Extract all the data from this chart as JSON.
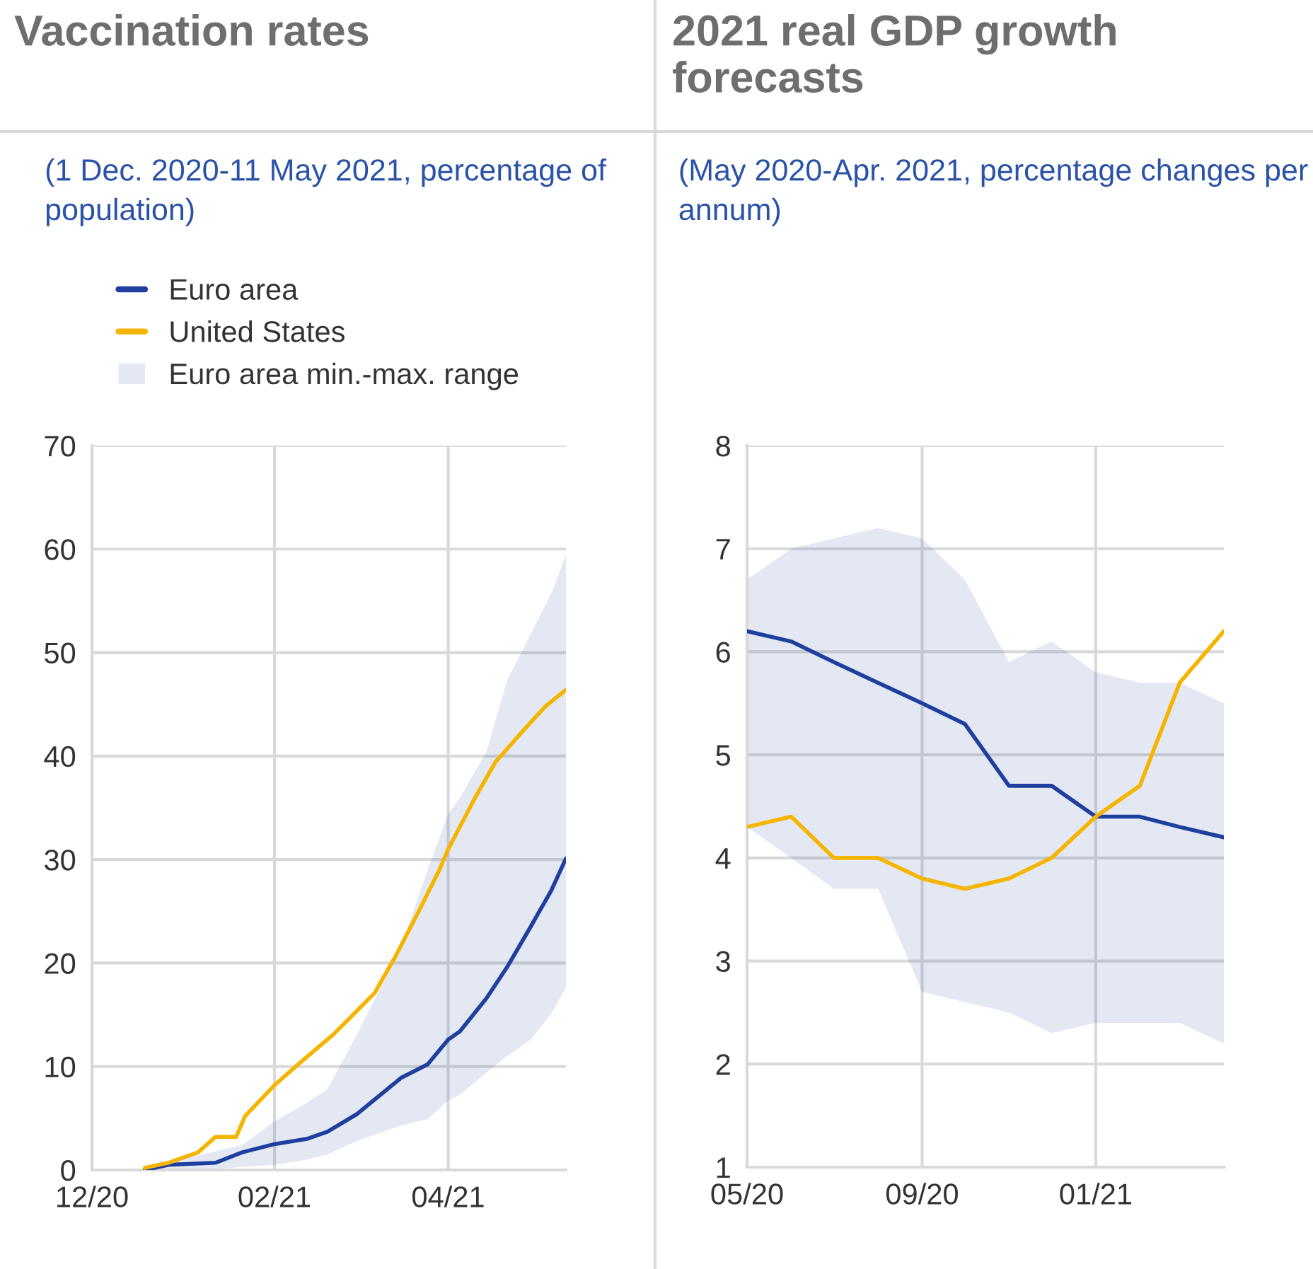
{
  "chart_data": [
    {
      "type": "line",
      "title": "Vaccination rates",
      "subtitle": "(1 Dec. 2020-11 May 2021, percentage of population)",
      "annotations": [
        "Euro area min.-max. range"
      ],
      "series": [
        {
          "name": "Euro area",
          "color": "#1f3f9f",
          "x": [
            "2020-12-19",
            "2020-12-27",
            "2021-01-12",
            "2021-01-21",
            "2021-02-01",
            "2021-02-12",
            "2021-02-19",
            "2021-03-01",
            "2021-03-16",
            "2021-03-25",
            "2021-04-01",
            "2021-04-05",
            "2021-04-14",
            "2021-04-21",
            "2021-04-29",
            "2021-05-06",
            "2021-05-11"
          ],
          "values": [
            0,
            0.5,
            0.7,
            1.7,
            2.5,
            3.0,
            3.7,
            5.4,
            8.9,
            10.2,
            12.6,
            13.4,
            16.6,
            19.6,
            23.5,
            27.0,
            30.1
          ],
          "lower": [
            0,
            0,
            0.1,
            0.3,
            0.5,
            1.0,
            1.5,
            2.8,
            4.3,
            4.9,
            6.7,
            7.3,
            9.4,
            11.0,
            12.6,
            15.1,
            17.6
          ],
          "upper": [
            0.3,
            0.8,
            1.8,
            2.4,
            4.7,
            6.5,
            7.8,
            13.1,
            21.5,
            29.0,
            34.4,
            36.0,
            40.4,
            47.3,
            51.8,
            55.7,
            59.4
          ]
        },
        {
          "name": "United States",
          "color": "#f5b400",
          "x": [
            "2020-12-19",
            "2020-12-27",
            "2021-01-06",
            "2021-01-12",
            "2021-01-19",
            "2021-01-22",
            "2021-02-01",
            "2021-02-09",
            "2021-02-21",
            "2021-03-07",
            "2021-03-14",
            "2021-03-22",
            "2021-03-29",
            "2021-04-01",
            "2021-04-10",
            "2021-04-17",
            "2021-04-26",
            "2021-05-04",
            "2021-05-11"
          ],
          "values": [
            0.2,
            0.7,
            1.7,
            3.2,
            3.2,
            5.2,
            8.2,
            10.2,
            13.1,
            17.1,
            20.6,
            25.0,
            29.0,
            31.0,
            35.9,
            39.4,
            42.3,
            44.8,
            46.4
          ]
        }
      ],
      "xlim": [
        "2020-12-01",
        "2021-05-11"
      ],
      "xticks": [
        {
          "value": "2020-12-01",
          "label": "12/20"
        },
        {
          "value": "2021-02-01",
          "label": "02/21"
        },
        {
          "value": "2021-04-01",
          "label": "04/21"
        }
      ],
      "ylim": [
        0,
        70
      ],
      "yticks": [
        0,
        10,
        20,
        30,
        40,
        50,
        60,
        70
      ],
      "grid": true,
      "legend": "top left"
    },
    {
      "type": "line",
      "title": "2021 real GDP growth forecasts",
      "subtitle": "(May 2020-Apr. 2021, percentage changes per annum)",
      "series": [
        {
          "color": "#1f3f9f",
          "x": [
            "2020-05",
            "2020-06",
            "2020-07",
            "2020-08",
            "2020-09",
            "2020-10",
            "2020-11",
            "2020-12",
            "2021-01",
            "2021-02",
            "2021-03",
            "2021-04"
          ],
          "values": [
            6.2,
            6.1,
            5.9,
            5.7,
            5.5,
            5.3,
            4.7,
            4.7,
            4.4,
            4.4,
            4.3,
            4.2
          ],
          "lower": [
            4.3,
            4.0,
            3.7,
            3.7,
            2.7,
            2.6,
            2.5,
            2.3,
            2.4,
            2.4,
            2.4,
            2.2
          ],
          "upper": [
            6.7,
            7.0,
            7.1,
            7.2,
            7.1,
            6.7,
            5.9,
            6.1,
            5.8,
            5.7,
            5.7,
            5.5
          ]
        },
        {
          "color": "#f5b400",
          "x": [
            "2020-05",
            "2020-06",
            "2020-07",
            "2020-08",
            "2020-09",
            "2020-10",
            "2020-11",
            "2020-12",
            "2021-01",
            "2021-02",
            "2021-03",
            "2021-04"
          ],
          "values": [
            4.3,
            4.4,
            4.0,
            4.0,
            3.8,
            3.7,
            3.8,
            4.0,
            4.4,
            4.7,
            5.7,
            6.2
          ]
        }
      ],
      "xlim": [
        "2020-05",
        "2021-04"
      ],
      "xticks": [
        {
          "value": "2020-05",
          "label": "05/20"
        },
        {
          "value": "2020-09",
          "label": "09/20"
        },
        {
          "value": "2021-01",
          "label": "01/21"
        }
      ],
      "ylim": [
        1,
        8
      ],
      "yticks": [
        1,
        2,
        3,
        4,
        5,
        6,
        7,
        8
      ],
      "grid": true
    }
  ]
}
